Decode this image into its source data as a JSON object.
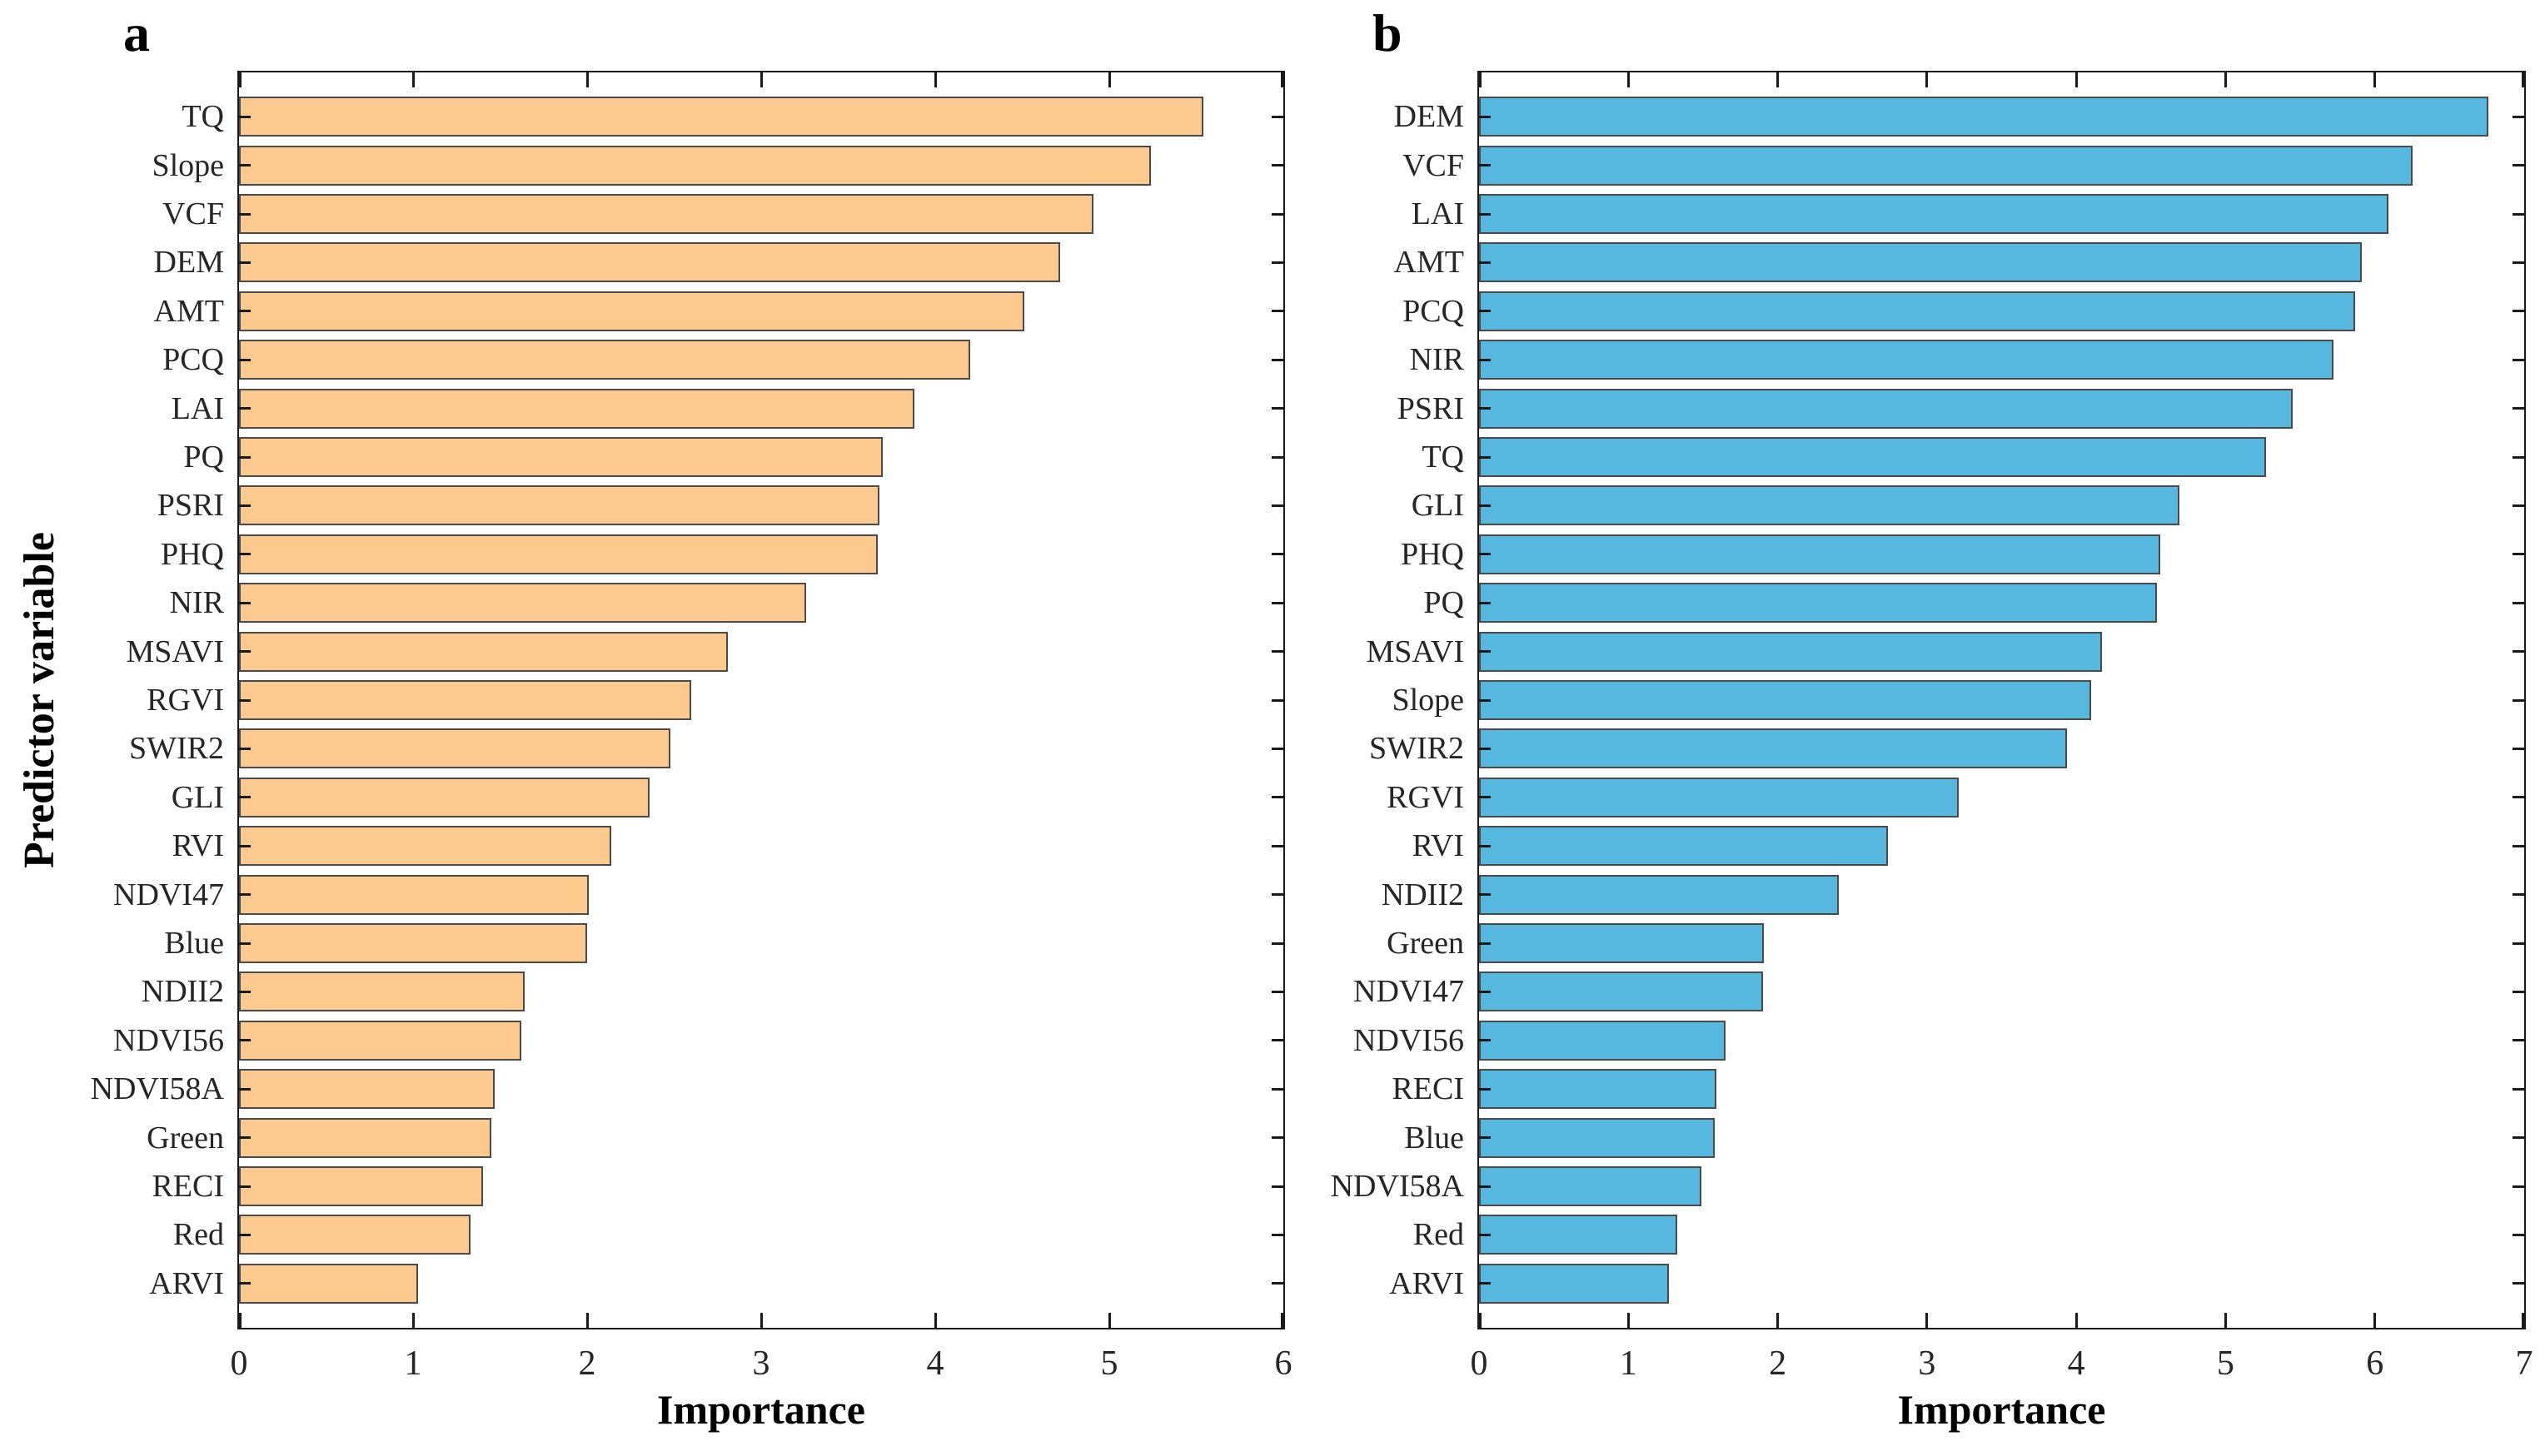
{
  "figure_background": "#ffffff",
  "axis_color": "#1a1a1a",
  "chart_data": [
    {
      "type": "bar",
      "orientation": "horizontal",
      "panel_label": "a",
      "xlabel": "Importance",
      "ylabel": "Predictor variable",
      "xlim": [
        0,
        6
      ],
      "xticks": [
        0,
        1,
        2,
        3,
        4,
        5,
        6
      ],
      "grid": false,
      "legend": null,
      "bar_color": "#FCC98E",
      "bar_edge_color": "#4a4a4a",
      "categories": [
        "TQ",
        "Slope",
        "VCF",
        "DEM",
        "AMT",
        "PCQ",
        "LAI",
        "PQ",
        "PSRI",
        "PHQ",
        "NIR",
        "MSAVI",
        "RGVI",
        "SWIR2",
        "GLI",
        "RVI",
        "NDVI47",
        "Blue",
        "NDII2",
        "NDVI56",
        "NDVI58A",
        "Green",
        "RECI",
        "Red",
        "ARVI"
      ],
      "values": [
        5.54,
        5.24,
        4.91,
        4.72,
        4.51,
        4.2,
        3.88,
        3.7,
        3.68,
        3.67,
        3.26,
        2.81,
        2.6,
        2.48,
        2.36,
        2.14,
        2.01,
        2.0,
        1.64,
        1.62,
        1.47,
        1.45,
        1.4,
        1.33,
        1.03
      ]
    },
    {
      "type": "bar",
      "orientation": "horizontal",
      "panel_label": "b",
      "xlabel": "Importance",
      "ylabel": "",
      "xlim": [
        0,
        7
      ],
      "xticks": [
        0,
        1,
        2,
        3,
        4,
        5,
        6,
        7
      ],
      "grid": false,
      "legend": null,
      "bar_color": "#56B7DF",
      "bar_edge_color": "#4a4a4a",
      "categories": [
        "DEM",
        "VCF",
        "LAI",
        "AMT",
        "PCQ",
        "NIR",
        "PSRI",
        "TQ",
        "GLI",
        "PHQ",
        "PQ",
        "MSAVI",
        "Slope",
        "SWIR2",
        "RGVI",
        "RVI",
        "NDII2",
        "Green",
        "NDVI47",
        "NDVI56",
        "RECI",
        "Blue",
        "NDVI58A",
        "Red",
        "ARVI"
      ],
      "values": [
        6.76,
        6.25,
        6.09,
        5.91,
        5.87,
        5.72,
        5.45,
        5.27,
        4.69,
        4.56,
        4.54,
        4.17,
        4.1,
        3.94,
        3.21,
        2.74,
        2.41,
        1.91,
        1.9,
        1.65,
        1.59,
        1.58,
        1.49,
        1.33,
        1.27
      ]
    }
  ]
}
